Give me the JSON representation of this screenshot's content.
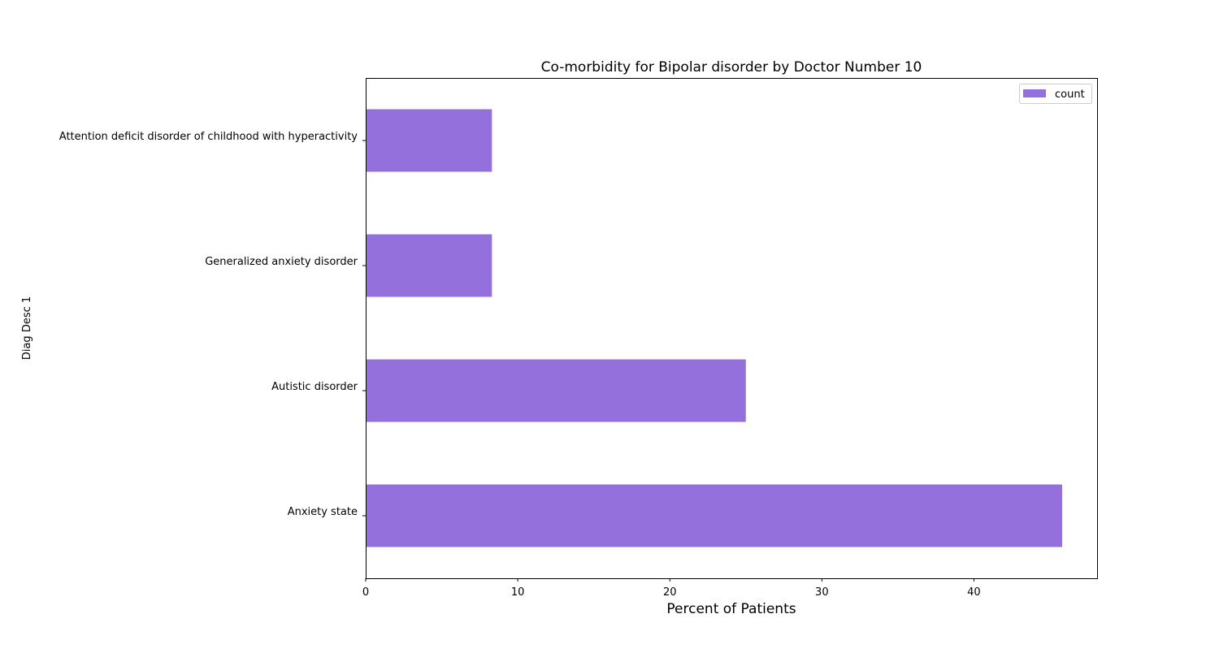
{
  "chart_data": {
    "type": "bar",
    "orientation": "horizontal",
    "title": "Co-morbidity for Bipolar disorder by Doctor Number 10",
    "xlabel": "Percent of Patients",
    "ylabel": "Diag Desc 1",
    "categories": [
      "Anxiety state",
      "Autistic disorder",
      "Generalized anxiety disorder",
      "Attention deficit disorder of childhood with hyperactivity"
    ],
    "series": [
      {
        "name": "count",
        "values": [
          45.8,
          25.0,
          8.3,
          8.3
        ],
        "color": "#9370db"
      }
    ],
    "xlim": [
      0,
      48.1
    ],
    "xticks": [
      0,
      10,
      20,
      30,
      40
    ],
    "grid": false,
    "legend": "top-right"
  }
}
